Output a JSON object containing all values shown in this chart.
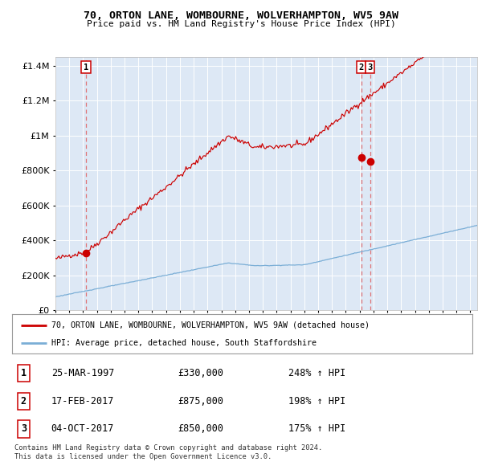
{
  "title_line1": "70, ORTON LANE, WOMBOURNE, WOLVERHAMPTON, WV5 9AW",
  "title_line2": "Price paid vs. HM Land Registry's House Price Index (HPI)",
  "bg_color": "#dde8f5",
  "red_line_color": "#cc0000",
  "blue_line_color": "#7aaed6",
  "dashed_line_color": "#e06060",
  "marker_color": "#cc0000",
  "sale_points": [
    {
      "date_num": 1997.22,
      "value": 330000,
      "label": "1"
    },
    {
      "date_num": 2017.12,
      "value": 875000,
      "label": "2"
    },
    {
      "date_num": 2017.75,
      "value": 850000,
      "label": "3"
    }
  ],
  "legend_entries": [
    "70, ORTON LANE, WOMBOURNE, WOLVERHAMPTON, WV5 9AW (detached house)",
    "HPI: Average price, detached house, South Staffordshire"
  ],
  "table_rows": [
    {
      "num": "1",
      "date": "25-MAR-1997",
      "price": "£330,000",
      "hpi": "248% ↑ HPI"
    },
    {
      "num": "2",
      "date": "17-FEB-2017",
      "price": "£875,000",
      "hpi": "198% ↑ HPI"
    },
    {
      "num": "3",
      "date": "04-OCT-2017",
      "price": "£850,000",
      "hpi": "175% ↑ HPI"
    }
  ],
  "footer": "Contains HM Land Registry data © Crown copyright and database right 2024.\nThis data is licensed under the Open Government Licence v3.0.",
  "ylim": [
    0,
    1450000
  ],
  "xlim_start": 1995.0,
  "xlim_end": 2025.5,
  "yticks": [
    0,
    200000,
    400000,
    600000,
    800000,
    1000000,
    1200000,
    1400000
  ]
}
